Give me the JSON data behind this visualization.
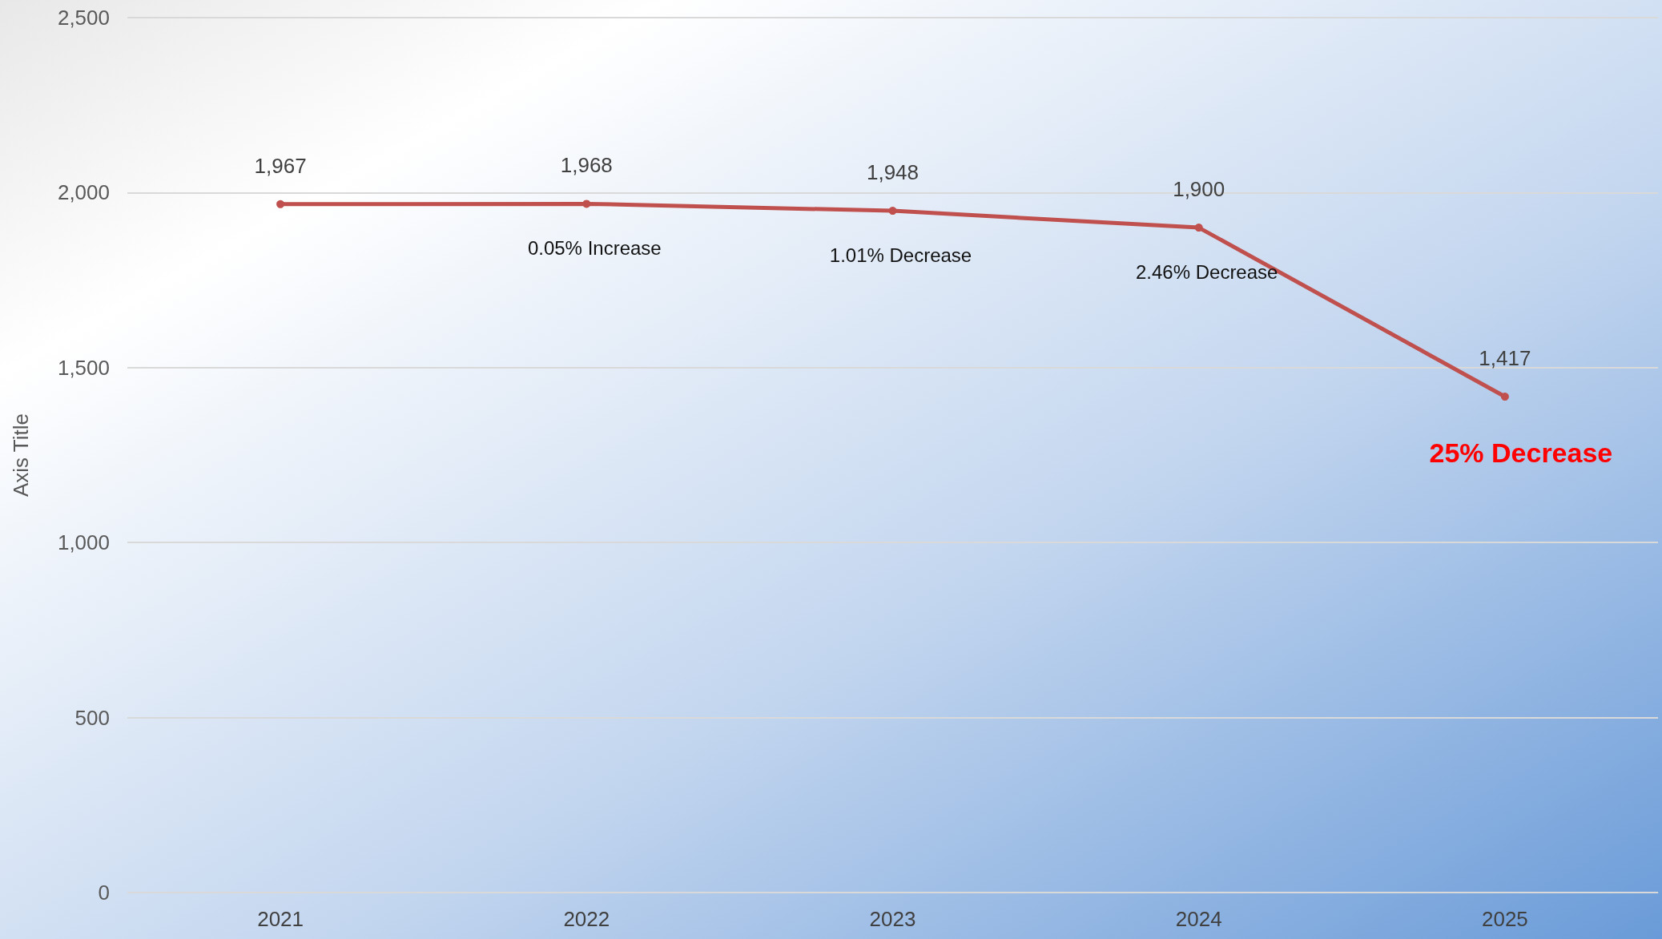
{
  "chart_data": {
    "type": "line",
    "ylabel": "Axis Title",
    "categories": [
      "2021",
      "2022",
      "2023",
      "2024",
      "2025"
    ],
    "series": [
      {
        "color": "#c0504d",
        "values": [
          1967,
          1968,
          1948,
          1900,
          1417
        ],
        "value_labels": [
          "1,967",
          "1,968",
          "1,948",
          "1,900",
          "1,417"
        ]
      }
    ],
    "ylim": [
      0,
      2500
    ],
    "yticks": [
      0,
      500,
      {
        "value": 1000,
        "label": "1,000"
      },
      {
        "value": 1500,
        "label": "1,500"
      },
      {
        "value": 2000,
        "label": "2,000"
      },
      {
        "value": 2500,
        "label": "2,500"
      }
    ],
    "grid": "y",
    "marker": "circle",
    "annotations": [
      {
        "text": "0.05% Increase",
        "x": "2022",
        "y": 1968
      },
      {
        "text": "1.01% Decrease",
        "x": "2023",
        "y": 1948
      },
      {
        "text": "2.46% Decrease",
        "x": "2024",
        "y": 1900
      },
      {
        "text": "25% Decrease",
        "x": "2025",
        "y": 1417
      }
    ]
  }
}
